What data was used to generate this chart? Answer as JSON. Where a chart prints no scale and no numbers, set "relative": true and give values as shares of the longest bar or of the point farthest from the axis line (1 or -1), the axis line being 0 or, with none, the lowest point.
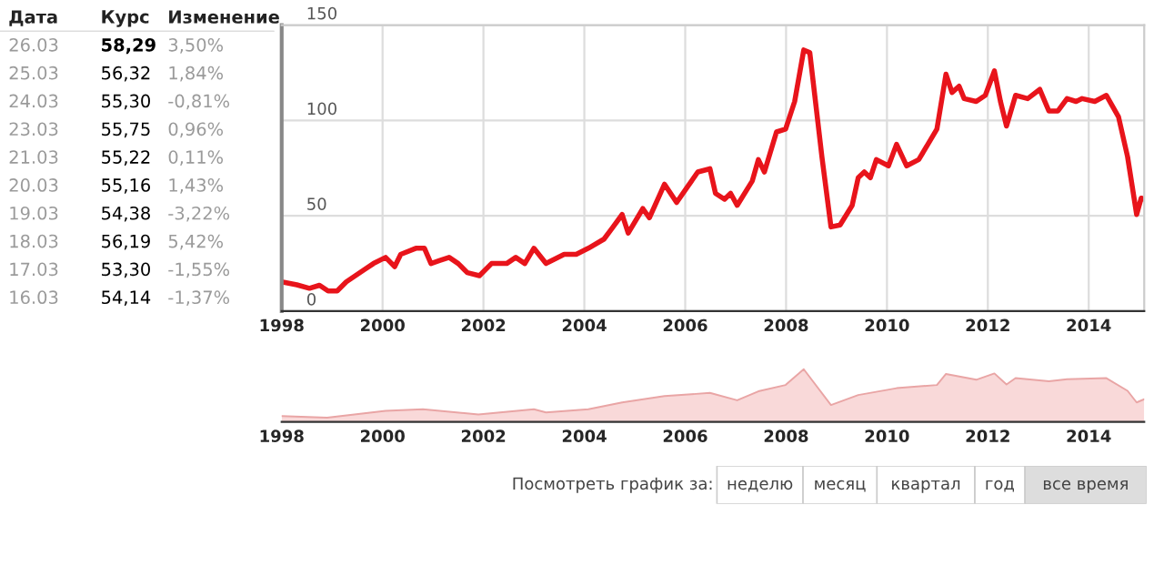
{
  "chart_data": [
    {
      "type": "other",
      "annotations": [
        "Дата",
        "Курс",
        "Изменение",
        "26.03",
        "58,29",
        "3,50%",
        "25.03",
        "56,32",
        "1,84%",
        "24.03",
        "55,30",
        "-0,81%",
        "23.03",
        "55,75",
        "0,96%",
        "21.03",
        "55,22",
        "0,11%",
        "20.03",
        "55,16",
        "1,43%",
        "19.03",
        "54,38",
        "-3,22%",
        "18.03",
        "56,19",
        "5,42%",
        "17.03",
        "53,30",
        "-1,55%",
        "16.03",
        "54,14",
        "-1,37%"
      ]
    },
    {
      "type": "line",
      "color": "#e8141b",
      "grid": true,
      "marker": "none",
      "xlim": [
        1998,
        2015.1
      ],
      "xticks": [
        1998,
        2000,
        2002,
        2004,
        2006,
        2008,
        2010,
        2012,
        2014
      ],
      "ylim": [
        0,
        150
      ],
      "yticks": [
        0,
        50,
        100,
        150
      ],
      "x": [
        1998.0,
        1998.3,
        1998.55,
        1998.75,
        1998.92,
        1999.1,
        1999.28,
        1999.64,
        1999.82,
        2000.06,
        2000.24,
        2000.36,
        2000.66,
        2000.83,
        2000.96,
        2001.14,
        2001.32,
        2001.5,
        2001.68,
        2001.92,
        2002.16,
        2002.46,
        2002.64,
        2002.82,
        2003.0,
        2003.24,
        2003.6,
        2003.84,
        2004.08,
        2004.39,
        2004.57,
        2004.75,
        2004.87,
        2005.16,
        2005.29,
        2005.59,
        2005.83,
        2006.0,
        2006.25,
        2006.49,
        2006.6,
        2006.78,
        2006.9,
        2007.03,
        2007.33,
        2007.45,
        2007.57,
        2007.81,
        2007.99,
        2008.17,
        2008.35,
        2008.47,
        2008.71,
        2008.89,
        2009.07,
        2009.31,
        2009.43,
        2009.55,
        2009.67,
        2009.79,
        2010.03,
        2010.19,
        2010.39,
        2010.63,
        2010.99,
        2011.17,
        2011.29,
        2011.43,
        2011.53,
        2011.77,
        2011.95,
        2012.13,
        2012.25,
        2012.37,
        2012.55,
        2012.79,
        2013.03,
        2013.21,
        2013.39,
        2013.57,
        2013.75,
        2013.87,
        2014.12,
        2014.35,
        2014.59,
        2014.77,
        2014.95,
        2015.04,
        2015.1
      ],
      "values": [
        15.4,
        13.8,
        12,
        13.6,
        10.6,
        10.6,
        15.4,
        21.8,
        25,
        28.2,
        23.4,
        29.8,
        33,
        33,
        25,
        26.6,
        28.2,
        25,
        20.2,
        18.6,
        25,
        25,
        28.2,
        25,
        33,
        25,
        29.8,
        29.8,
        33,
        37.8,
        44.2,
        50.7,
        41,
        53.8,
        49,
        66.6,
        57,
        63.5,
        73,
        74.7,
        61.8,
        58.7,
        61.8,
        55.5,
        68.3,
        79.5,
        73,
        94,
        95.5,
        110,
        137,
        135.6,
        81,
        44.2,
        45.2,
        55.5,
        70,
        73,
        70,
        79.5,
        76.2,
        87.5,
        76.2,
        79.5,
        95.5,
        124.3,
        114.7,
        118,
        111.5,
        110,
        113.2,
        126,
        110,
        97.1,
        113.2,
        111.5,
        116.3,
        105,
        105,
        111.5,
        110,
        111.5,
        110,
        113.2,
        102,
        81,
        50.7,
        59.3,
        58.7
      ]
    },
    {
      "type": "area",
      "relative": true,
      "color": "#f9d9d9",
      "xlim": [
        1998,
        2015.1
      ],
      "xticks": [
        1998,
        2000,
        2002,
        2004,
        2006,
        2008,
        2010,
        2012,
        2014
      ],
      "x": [
        1998.0,
        1998.9,
        2000.06,
        2000.8,
        2001.9,
        2003.0,
        2003.24,
        2004.08,
        2004.75,
        2005.59,
        2006.49,
        2007.03,
        2007.45,
        2007.99,
        2008.35,
        2008.89,
        2009.43,
        2010.19,
        2010.99,
        2011.17,
        2011.77,
        2012.13,
        2012.37,
        2012.55,
        2013.21,
        2013.57,
        2014.35,
        2014.77,
        2014.95,
        2015.1
      ],
      "values": [
        0.11,
        0.08,
        0.21,
        0.24,
        0.14,
        0.24,
        0.18,
        0.24,
        0.37,
        0.49,
        0.55,
        0.41,
        0.58,
        0.7,
        1.0,
        0.32,
        0.51,
        0.64,
        0.7,
        0.91,
        0.8,
        0.92,
        0.71,
        0.83,
        0.77,
        0.81,
        0.83,
        0.59,
        0.37,
        0.43
      ]
    },
    {
      "type": "other",
      "annotations": [
        "Посмотреть график за:",
        "неделю",
        "месяц",
        "квартал",
        "год",
        "все время"
      ],
      "colors": [
        null,
        "#ffffff",
        "#ffffff",
        "#ffffff",
        "#ffffff",
        "#dddddd"
      ]
    }
  ]
}
